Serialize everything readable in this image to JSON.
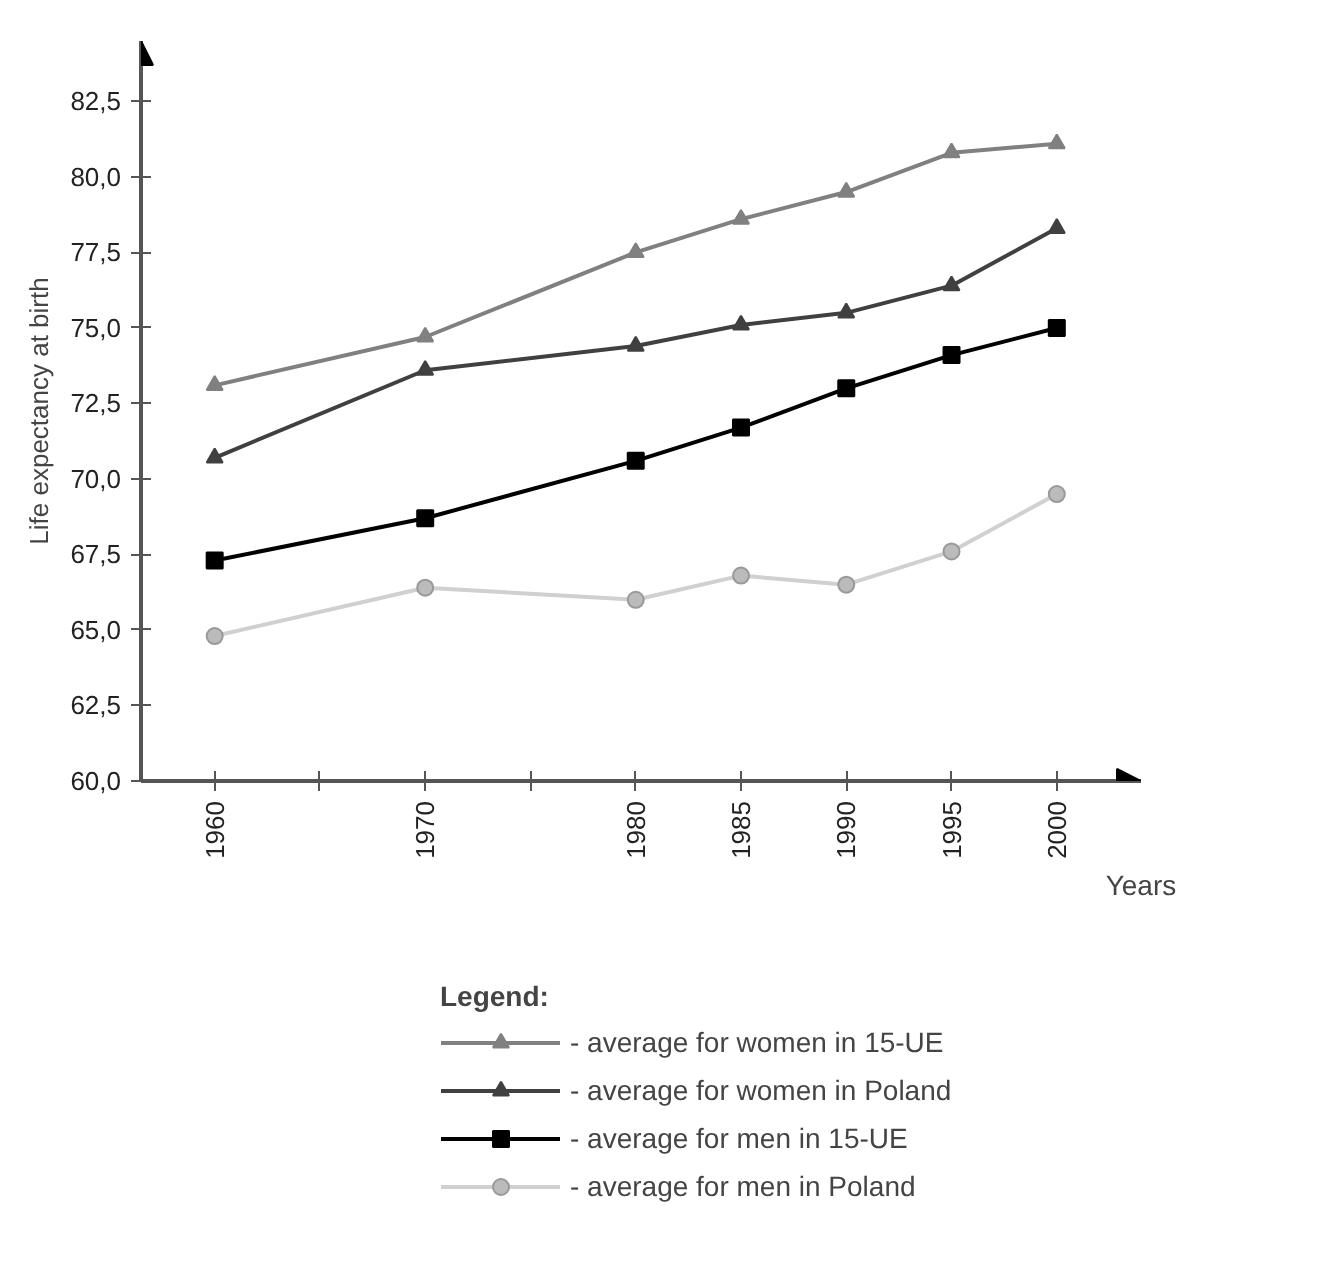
{
  "chart_data": {
    "type": "line",
    "xlabel": "Years",
    "ylabel": "Life expectancy at birth",
    "legend_title": "Legend:",
    "x": [
      1960,
      1970,
      1980,
      1985,
      1990,
      1995,
      2000
    ],
    "xlim": [
      1956.5,
      2004
    ],
    "xticks": [
      1960,
      {
        "value": 1965,
        "label": null
      },
      1970,
      {
        "value": 1975,
        "label": null
      },
      1980,
      1985,
      1990,
      1995,
      2000
    ],
    "ylim": [
      60,
      84.5
    ],
    "yticks": [
      {
        "value": 60,
        "label": "60,0"
      },
      {
        "value": 62.5,
        "label": "62,5"
      },
      {
        "value": 65,
        "label": "65,0"
      },
      {
        "value": 67.5,
        "label": "67,5"
      },
      {
        "value": 70,
        "label": "70,0"
      },
      {
        "value": 72.5,
        "label": "72,5"
      },
      {
        "value": 75,
        "label": "75,0"
      },
      {
        "value": 77.5,
        "label": "77,5"
      },
      {
        "value": 80,
        "label": "80,0"
      },
      {
        "value": 82.5,
        "label": "82,5"
      }
    ],
    "grid": false,
    "legend": "bottom",
    "line_style": "solid",
    "series": [
      {
        "name": "- average for women in 15-UE",
        "color": "#808080",
        "marker": "triangle",
        "values": [
          73.1,
          74.7,
          77.5,
          78.6,
          79.5,
          80.8,
          81.1
        ]
      },
      {
        "name": "- average for women in Poland",
        "color": "#404040",
        "marker": "triangle",
        "values": [
          70.7,
          73.6,
          74.4,
          75.1,
          75.5,
          76.4,
          78.3
        ]
      },
      {
        "name": "- average for men in 15-UE",
        "color": "#000000",
        "marker": "square",
        "values": [
          67.3,
          68.7,
          70.6,
          71.7,
          73.0,
          74.1,
          75.0
        ]
      },
      {
        "name": "- average for men in Poland",
        "color": "#d0d0d0",
        "marker": "circle",
        "values": [
          64.8,
          66.4,
          66.0,
          66.8,
          66.5,
          67.6,
          69.5
        ]
      }
    ]
  }
}
